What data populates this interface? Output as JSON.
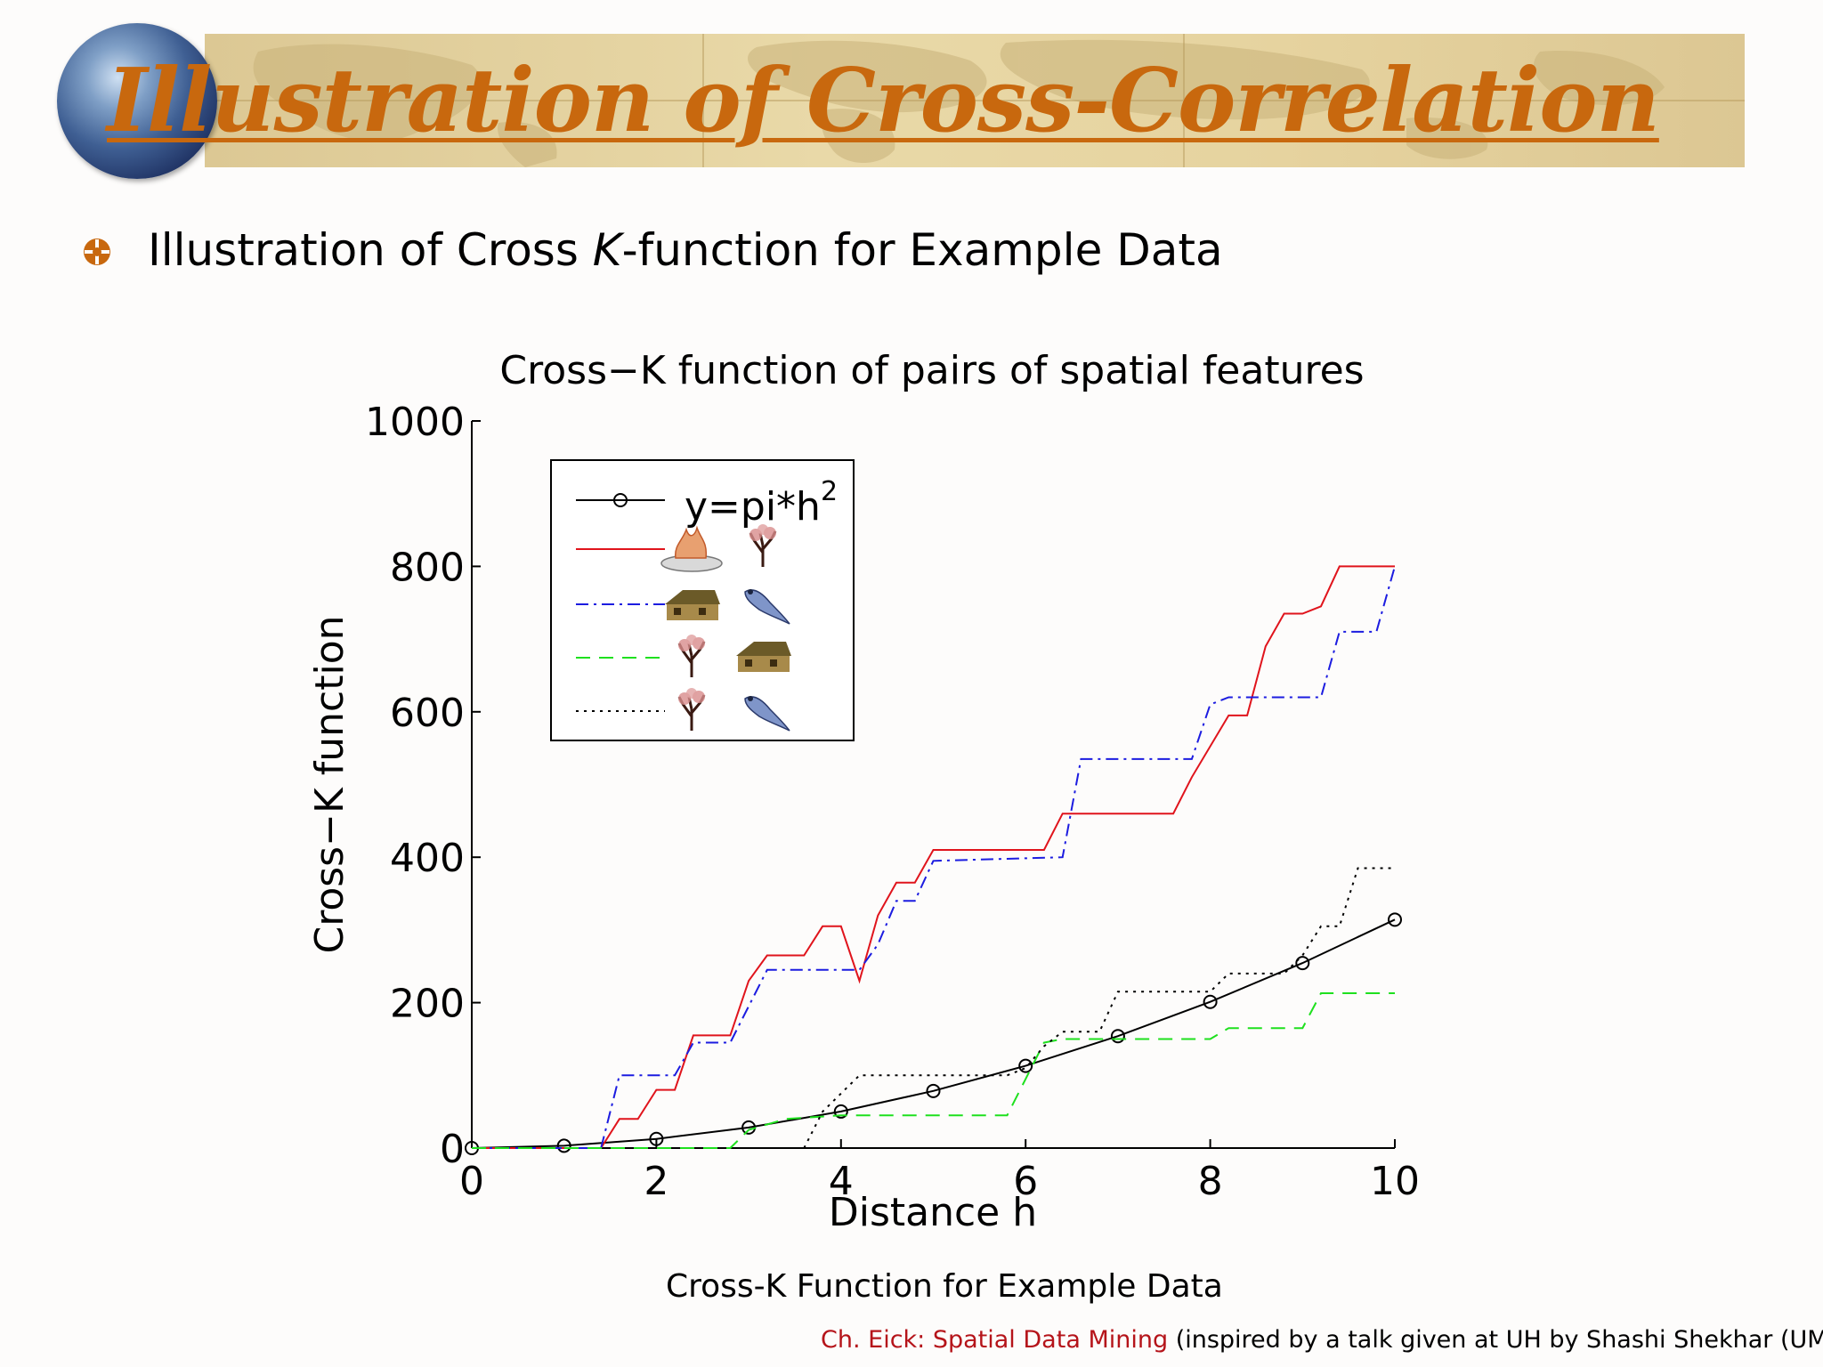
{
  "slide": {
    "title": "Illustration of Cross-Correlation",
    "bullet_pre": "Illustration of Cross ",
    "bullet_k": "K",
    "bullet_post": "-function for Example Data",
    "caption": "Cross-K Function for Example Data",
    "footer_red": "Ch. Eick: Spatial Data Mining",
    "footer_rest": " (inspired by a talk given at UH by Shashi Shekhar (UMN))"
  },
  "chart_data": {
    "type": "line",
    "title": "Cross−K function of pairs of spatial features",
    "xlabel": "Distance h",
    "ylabel": "Cross−K function",
    "xlim": [
      0,
      10
    ],
    "ylim": [
      0,
      1000
    ],
    "xticks": [
      0,
      2,
      4,
      6,
      8,
      10
    ],
    "yticks": [
      0,
      200,
      400,
      600,
      800,
      1000
    ],
    "legend": {
      "placement": "upper-left",
      "entries": [
        "y=pi*h^2",
        "fire - tree",
        "house - bird",
        "tree - house",
        "tree - bird"
      ]
    },
    "series": [
      {
        "name": "y=pi*h2",
        "color": "#000000",
        "style": "solid-circle",
        "points": [
          [
            0,
            0
          ],
          [
            1,
            3.14
          ],
          [
            2,
            12.57
          ],
          [
            3,
            28.27
          ],
          [
            4,
            50.27
          ],
          [
            5,
            78.54
          ],
          [
            6,
            113.1
          ],
          [
            7,
            153.94
          ],
          [
            8,
            201.06
          ],
          [
            9,
            254.47
          ],
          [
            10,
            314.16
          ]
        ]
      },
      {
        "color": "#e0141c",
        "style": "solid",
        "points": [
          [
            0,
            0
          ],
          [
            1.4,
            0
          ],
          [
            1.6,
            40
          ],
          [
            1.8,
            40
          ],
          [
            2,
            80
          ],
          [
            2.2,
            80
          ],
          [
            2.4,
            155
          ],
          [
            2.8,
            155
          ],
          [
            3,
            230
          ],
          [
            3.2,
            265
          ],
          [
            3.6,
            265
          ],
          [
            3.8,
            305
          ],
          [
            4,
            305
          ],
          [
            4.2,
            230
          ],
          [
            4.4,
            320
          ],
          [
            4.6,
            365
          ],
          [
            4.8,
            365
          ],
          [
            5,
            410
          ],
          [
            6.2,
            410
          ],
          [
            6.4,
            460
          ],
          [
            7.6,
            460
          ],
          [
            7.8,
            510
          ],
          [
            8.2,
            595
          ],
          [
            8.4,
            595
          ],
          [
            8.6,
            690
          ],
          [
            8.8,
            735
          ],
          [
            9,
            735
          ],
          [
            9.2,
            745
          ],
          [
            9.4,
            800
          ],
          [
            10,
            800
          ]
        ]
      },
      {
        "color": "#1c1ce0",
        "style": "dashdot",
        "points": [
          [
            0,
            0
          ],
          [
            1.4,
            0
          ],
          [
            1.6,
            100
          ],
          [
            2.2,
            100
          ],
          [
            2.4,
            145
          ],
          [
            2.8,
            145
          ],
          [
            3.2,
            245
          ],
          [
            4.2,
            245
          ],
          [
            4.4,
            280
          ],
          [
            4.6,
            340
          ],
          [
            4.8,
            340
          ],
          [
            5,
            395
          ],
          [
            6.4,
            400
          ],
          [
            6.6,
            535
          ],
          [
            7.8,
            535
          ],
          [
            8,
            610
          ],
          [
            8.2,
            620
          ],
          [
            9.2,
            620
          ],
          [
            9.4,
            710
          ],
          [
            9.8,
            710
          ],
          [
            10,
            800
          ]
        ]
      },
      {
        "color": "#1ee01e",
        "style": "dashed",
        "points": [
          [
            0,
            0
          ],
          [
            2.8,
            0
          ],
          [
            3,
            25
          ],
          [
            3.4,
            40
          ],
          [
            4,
            45
          ],
          [
            5.8,
            45
          ],
          [
            6,
            95
          ],
          [
            6.2,
            145
          ],
          [
            6.4,
            150
          ],
          [
            8,
            150
          ],
          [
            8.2,
            165
          ],
          [
            9,
            165
          ],
          [
            9.2,
            213
          ],
          [
            10,
            213
          ]
        ]
      },
      {
        "color": "#000000",
        "style": "dotted",
        "points": [
          [
            3.6,
            0
          ],
          [
            3.8,
            50
          ],
          [
            4,
            75
          ],
          [
            4.2,
            100
          ],
          [
            5.8,
            100
          ],
          [
            6,
            110
          ],
          [
            6.2,
            140
          ],
          [
            6.4,
            160
          ],
          [
            6.8,
            160
          ],
          [
            7,
            215
          ],
          [
            7.8,
            215
          ],
          [
            8,
            215
          ],
          [
            8.2,
            240
          ],
          [
            8.8,
            240
          ],
          [
            9,
            265
          ],
          [
            9.2,
            305
          ],
          [
            9.4,
            305
          ],
          [
            9.6,
            385
          ],
          [
            10,
            385
          ]
        ]
      }
    ]
  }
}
